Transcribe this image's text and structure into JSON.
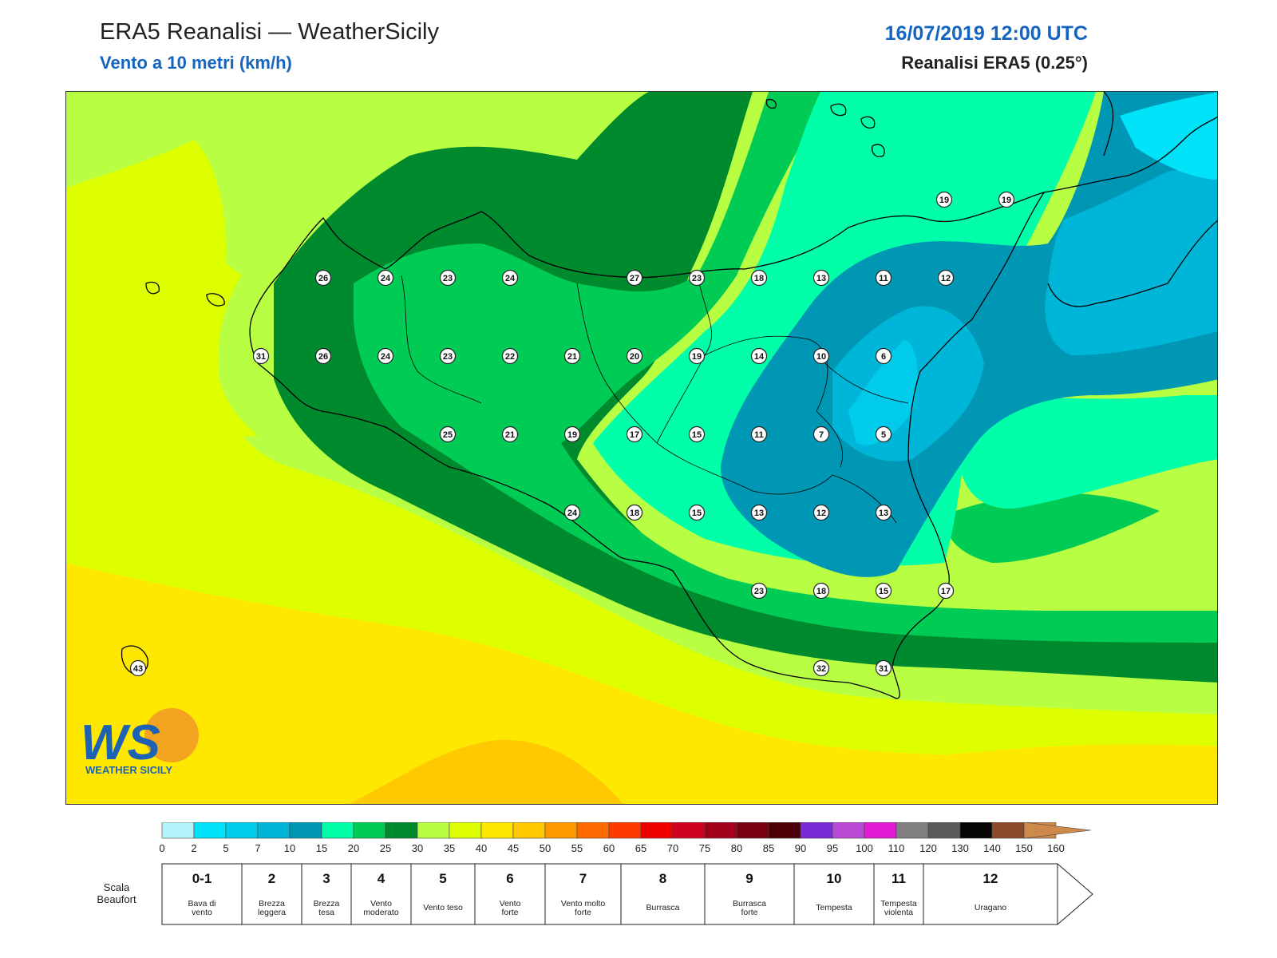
{
  "header": {
    "title": "ERA5 Reanalisi — WeatherSicily",
    "subtitle": "Vento a 10 metri (km/h)",
    "datetime": "16/07/2019 12:00 UTC",
    "source": "Reanalisi ERA5 (0.25°)"
  },
  "logo": {
    "letters": "WS",
    "text": "WEATHER SICILY"
  },
  "wind_points": [
    {
      "value": 19
    },
    {
      "value": 19
    },
    {
      "value": 26
    },
    {
      "value": 24
    },
    {
      "value": 23
    },
    {
      "value": 24
    },
    {
      "value": 27
    },
    {
      "value": 23
    },
    {
      "value": 18
    },
    {
      "value": 13
    },
    {
      "value": 11
    },
    {
      "value": 12
    },
    {
      "value": 31
    },
    {
      "value": 26
    },
    {
      "value": 24
    },
    {
      "value": 23
    },
    {
      "value": 22
    },
    {
      "value": 21
    },
    {
      "value": 20
    },
    {
      "value": 19
    },
    {
      "value": 14
    },
    {
      "value": 10
    },
    {
      "value": 6
    },
    {
      "value": 25
    },
    {
      "value": 21
    },
    {
      "value": 19
    },
    {
      "value": 17
    },
    {
      "value": 15
    },
    {
      "value": 11
    },
    {
      "value": 7
    },
    {
      "value": 5
    },
    {
      "value": 24
    },
    {
      "value": 18
    },
    {
      "value": 15
    },
    {
      "value": 13
    },
    {
      "value": 12
    },
    {
      "value": 13
    },
    {
      "value": 23
    },
    {
      "value": 18
    },
    {
      "value": 15
    },
    {
      "value": 17
    },
    {
      "value": 43
    },
    {
      "value": 32
    },
    {
      "value": 31
    }
  ],
  "colorbar": {
    "unit": "km/h",
    "ticks": [
      "0",
      "2",
      "5",
      "7",
      "10",
      "15",
      "20",
      "25",
      "30",
      "35",
      "40",
      "45",
      "50",
      "55",
      "60",
      "65",
      "70",
      "75",
      "80",
      "85",
      "90",
      "95",
      "100",
      "110",
      "120",
      "130",
      "140",
      "150",
      "160"
    ],
    "colors": [
      "#b5f3fb",
      "#00e2f8",
      "#00cbea",
      "#00b6d8",
      "#0097b5",
      "#00ffa8",
      "#00cc55",
      "#008a2e",
      "#b8ff44",
      "#ddff00",
      "#ffe800",
      "#ffc800",
      "#ff9a00",
      "#ff6a00",
      "#ff3a00",
      "#f00000",
      "#d00020",
      "#a0001a",
      "#78000e",
      "#4a0005",
      "#7a2ad6",
      "#b94ad6",
      "#e21ad6",
      "#808080",
      "#5a5a5a",
      "#050505",
      "#8b4a2a",
      "#cd8a4a"
    ]
  },
  "beaufort": {
    "title_line1": "Scala",
    "title_line2": "Beaufort",
    "classes": [
      {
        "number": "0-1",
        "line1": "Bava di",
        "line2": "vento"
      },
      {
        "number": "2",
        "line1": "Brezza",
        "line2": "leggera"
      },
      {
        "number": "3",
        "line1": "Brezza",
        "line2": "tesa"
      },
      {
        "number": "4",
        "line1": "Vento",
        "line2": "moderato"
      },
      {
        "number": "5",
        "line1": "Vento teso",
        "line2": ""
      },
      {
        "number": "6",
        "line1": "Vento",
        "line2": "forte"
      },
      {
        "number": "7",
        "line1": "Vento molto",
        "line2": "forte"
      },
      {
        "number": "8",
        "line1": "Burrasca",
        "line2": ""
      },
      {
        "number": "9",
        "line1": "Burrasca",
        "line2": "forte"
      },
      {
        "number": "10",
        "line1": "Tempesta",
        "line2": ""
      },
      {
        "number": "11",
        "line1": "Tempesta",
        "line2": "violenta"
      },
      {
        "number": "12",
        "line1": "Uragano",
        "line2": ""
      }
    ]
  }
}
